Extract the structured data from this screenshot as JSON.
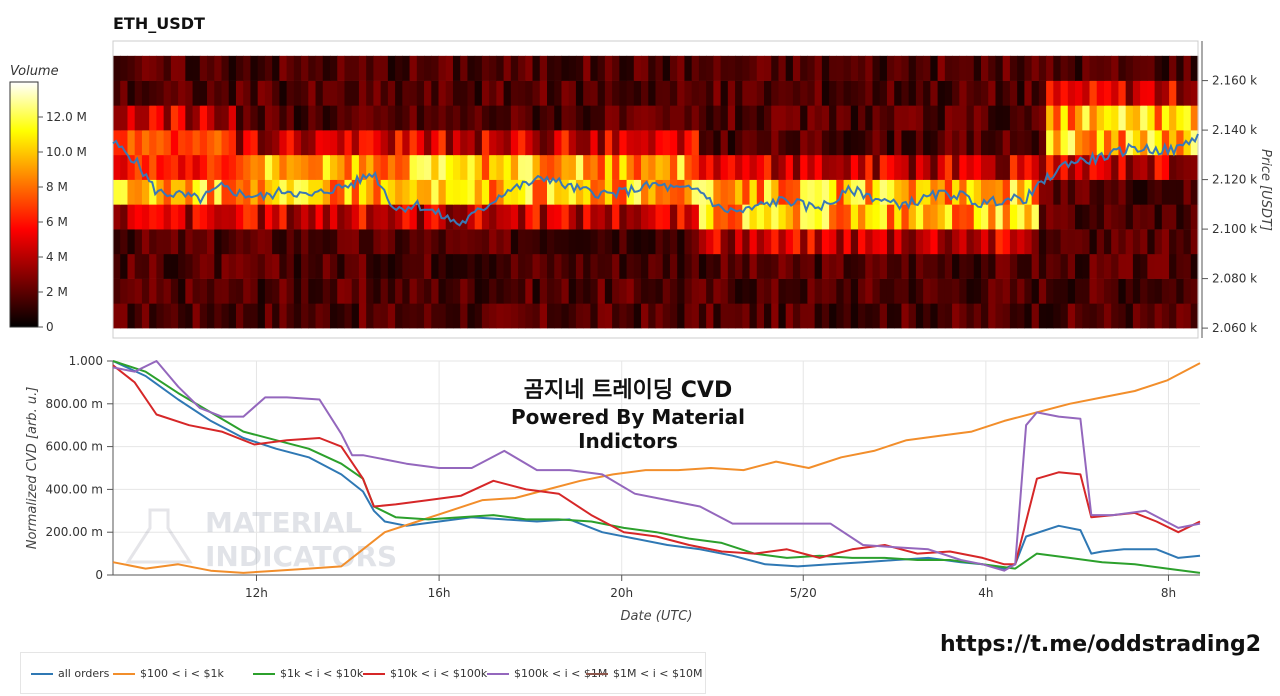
{
  "header": {
    "title": "ETH_USDT"
  },
  "overlay": {
    "line1": "곰지네 트레이딩 CVD",
    "line2": "Powered By Material Indictors"
  },
  "watermark": {
    "line1": "MATERIAL",
    "line2": "INDICATORS"
  },
  "link": "https://t.me/oddstrading2",
  "colors": {
    "all orders": "#2f78b4",
    "$100 < i < $1k": "#f28e2b",
    "$1k < i < $10k": "#2ca02c",
    "$10k < i < $100k": "#d62728",
    "$100k < i < $1M": "#9467bd",
    "$1M < i < $10M": "#8c564b",
    "price": "#3a78b5"
  },
  "chart_data": [
    {
      "type": "heatmap",
      "title": "ETH_USDT",
      "ylabel": "Price [USDT]",
      "ylim": [
        2056,
        2176
      ],
      "y_ticks": [
        "2.060 k",
        "2.080 k",
        "2.100 k",
        "2.120 k",
        "2.140 k",
        "2.160 k"
      ],
      "y_tick_values": [
        2060,
        2080,
        2100,
        2120,
        2140,
        2160
      ],
      "price_levels": [
        2065,
        2075,
        2085,
        2095,
        2105,
        2115,
        2125,
        2135,
        2145,
        2155,
        2165
      ],
      "colorbar": {
        "label": "Volume",
        "ticks": [
          "0",
          "2 M",
          "4 M",
          "6 M",
          "8 M",
          "10.0 M",
          "12.0 M"
        ],
        "tick_values": [
          0,
          2,
          4,
          6,
          8,
          10,
          12
        ],
        "max": 14
      },
      "high_volume_bands": [
        {
          "x_range": [
            0.0,
            0.54
          ],
          "levels": [
            2115,
            2125
          ],
          "peak_million": 12
        },
        {
          "x_range": [
            0.0,
            0.11
          ],
          "levels": [
            2125,
            2135
          ],
          "peak_million": 8
        },
        {
          "x_range": [
            0.54,
            0.85
          ],
          "levels": [
            2105,
            2115
          ],
          "peak_million": 12
        },
        {
          "x_range": [
            0.86,
            1.0
          ],
          "levels": [
            2135,
            2145
          ],
          "peak_million": 12
        }
      ],
      "price_series": {
        "name": "price",
        "x": [
          0.0,
          0.02,
          0.04,
          0.06,
          0.08,
          0.1,
          0.12,
          0.14,
          0.16,
          0.18,
          0.2,
          0.22,
          0.24,
          0.26,
          0.28,
          0.3,
          0.32,
          0.34,
          0.36,
          0.38,
          0.4,
          0.42,
          0.44,
          0.46,
          0.48,
          0.5,
          0.52,
          0.54,
          0.56,
          0.58,
          0.6,
          0.62,
          0.64,
          0.66,
          0.68,
          0.7,
          0.72,
          0.74,
          0.76,
          0.78,
          0.8,
          0.82,
          0.84,
          0.86,
          0.88,
          0.9,
          0.92,
          0.94,
          0.96,
          0.98,
          1.0
        ],
        "y": [
          2135,
          2128,
          2115,
          2114,
          2112,
          2117,
          2114,
          2113,
          2116,
          2113,
          2116,
          2118,
          2123,
          2108,
          2110,
          2106,
          2102,
          2108,
          2115,
          2118,
          2121,
          2117,
          2115,
          2114,
          2116,
          2118,
          2116,
          2116,
          2108,
          2107,
          2110,
          2112,
          2109,
          2110,
          2116,
          2113,
          2110,
          2111,
          2114,
          2114,
          2110,
          2112,
          2112,
          2120,
          2127,
          2128,
          2130,
          2133,
          2132,
          2132,
          2138
        ]
      }
    },
    {
      "type": "line",
      "title": "곰지네 트레이딩 CVD",
      "subtitle": "Powered By Material Indictors",
      "xlabel": "Date (UTC)",
      "ylabel": "Normalized CVD [arb. u.]",
      "ylim": [
        0,
        1
      ],
      "y_ticks": [
        "0",
        "200.00 m",
        "400.00 m",
        "600.00 m",
        "800.00 m",
        "1.000"
      ],
      "y_tick_values": [
        0,
        0.2,
        0.4,
        0.6,
        0.8,
        1.0
      ],
      "x_ticks": [
        "12h",
        "16h",
        "20h",
        "5/20",
        "4h",
        "8h"
      ],
      "x_tick_positions": [
        0.132,
        0.3,
        0.468,
        0.635,
        0.803,
        0.971
      ],
      "grid": true,
      "legend_position": "bottom",
      "series": [
        {
          "name": "all orders",
          "x": [
            0.0,
            0.03,
            0.06,
            0.09,
            0.12,
            0.15,
            0.18,
            0.21,
            0.23,
            0.24,
            0.25,
            0.27,
            0.3,
            0.33,
            0.36,
            0.39,
            0.42,
            0.45,
            0.48,
            0.51,
            0.54,
            0.57,
            0.6,
            0.63,
            0.66,
            0.69,
            0.72,
            0.75,
            0.78,
            0.8,
            0.82,
            0.83,
            0.84,
            0.87,
            0.89,
            0.9,
            0.91,
            0.93,
            0.96,
            0.98,
            1.0
          ],
          "y": [
            1.0,
            0.93,
            0.82,
            0.72,
            0.64,
            0.59,
            0.55,
            0.47,
            0.39,
            0.3,
            0.25,
            0.23,
            0.25,
            0.27,
            0.26,
            0.25,
            0.26,
            0.2,
            0.17,
            0.14,
            0.12,
            0.09,
            0.05,
            0.04,
            0.05,
            0.06,
            0.07,
            0.08,
            0.06,
            0.05,
            0.03,
            0.05,
            0.18,
            0.23,
            0.21,
            0.1,
            0.11,
            0.12,
            0.12,
            0.08,
            0.09
          ]
        },
        {
          "name": "$100 < i < $1k",
          "x": [
            0.0,
            0.03,
            0.06,
            0.09,
            0.12,
            0.15,
            0.18,
            0.21,
            0.23,
            0.25,
            0.28,
            0.31,
            0.34,
            0.37,
            0.4,
            0.43,
            0.46,
            0.49,
            0.52,
            0.55,
            0.58,
            0.61,
            0.64,
            0.67,
            0.7,
            0.73,
            0.76,
            0.79,
            0.82,
            0.85,
            0.88,
            0.91,
            0.94,
            0.97,
            1.0
          ],
          "y": [
            0.06,
            0.03,
            0.05,
            0.02,
            0.01,
            0.02,
            0.03,
            0.04,
            0.12,
            0.2,
            0.25,
            0.3,
            0.35,
            0.36,
            0.4,
            0.44,
            0.47,
            0.49,
            0.49,
            0.5,
            0.49,
            0.53,
            0.5,
            0.55,
            0.58,
            0.63,
            0.65,
            0.67,
            0.72,
            0.76,
            0.8,
            0.83,
            0.86,
            0.91,
            0.99
          ]
        },
        {
          "name": "$1k < i < $10k",
          "x": [
            0.0,
            0.03,
            0.06,
            0.09,
            0.12,
            0.15,
            0.18,
            0.21,
            0.23,
            0.24,
            0.26,
            0.29,
            0.32,
            0.35,
            0.38,
            0.41,
            0.44,
            0.47,
            0.5,
            0.53,
            0.56,
            0.59,
            0.62,
            0.65,
            0.68,
            0.71,
            0.74,
            0.77,
            0.8,
            0.83,
            0.85,
            0.88,
            0.91,
            0.94,
            0.97,
            1.0
          ],
          "y": [
            1.0,
            0.95,
            0.85,
            0.76,
            0.67,
            0.63,
            0.59,
            0.52,
            0.45,
            0.32,
            0.27,
            0.26,
            0.27,
            0.28,
            0.26,
            0.26,
            0.25,
            0.22,
            0.2,
            0.17,
            0.15,
            0.1,
            0.08,
            0.09,
            0.08,
            0.08,
            0.07,
            0.07,
            0.05,
            0.03,
            0.1,
            0.08,
            0.06,
            0.05,
            0.03,
            0.01
          ]
        },
        {
          "name": "$10k < i < $100k",
          "x": [
            0.0,
            0.02,
            0.04,
            0.07,
            0.1,
            0.13,
            0.16,
            0.19,
            0.21,
            0.23,
            0.24,
            0.26,
            0.29,
            0.32,
            0.35,
            0.38,
            0.41,
            0.44,
            0.47,
            0.5,
            0.53,
            0.56,
            0.59,
            0.62,
            0.65,
            0.68,
            0.71,
            0.74,
            0.77,
            0.8,
            0.82,
            0.83,
            0.85,
            0.87,
            0.89,
            0.9,
            0.92,
            0.94,
            0.96,
            0.98,
            1.0
          ],
          "y": [
            0.98,
            0.9,
            0.75,
            0.7,
            0.67,
            0.61,
            0.63,
            0.64,
            0.6,
            0.45,
            0.32,
            0.33,
            0.35,
            0.37,
            0.44,
            0.4,
            0.38,
            0.28,
            0.2,
            0.18,
            0.14,
            0.11,
            0.1,
            0.12,
            0.08,
            0.12,
            0.14,
            0.1,
            0.11,
            0.08,
            0.05,
            0.05,
            0.45,
            0.48,
            0.47,
            0.27,
            0.28,
            0.29,
            0.25,
            0.2,
            0.25
          ]
        },
        {
          "name": "$100k < i < $1M",
          "x": [
            0.0,
            0.02,
            0.04,
            0.06,
            0.08,
            0.1,
            0.12,
            0.14,
            0.16,
            0.19,
            0.21,
            0.22,
            0.23,
            0.24,
            0.27,
            0.3,
            0.33,
            0.36,
            0.39,
            0.42,
            0.45,
            0.48,
            0.51,
            0.54,
            0.57,
            0.6,
            0.63,
            0.66,
            0.69,
            0.72,
            0.75,
            0.78,
            0.8,
            0.82,
            0.83,
            0.84,
            0.85,
            0.87,
            0.89,
            0.9,
            0.92,
            0.95,
            0.98,
            1.0
          ],
          "y": [
            0.97,
            0.95,
            1.0,
            0.88,
            0.78,
            0.74,
            0.74,
            0.83,
            0.83,
            0.82,
            0.66,
            0.56,
            0.56,
            0.55,
            0.52,
            0.5,
            0.5,
            0.58,
            0.49,
            0.49,
            0.47,
            0.38,
            0.35,
            0.32,
            0.24,
            0.24,
            0.24,
            0.24,
            0.14,
            0.13,
            0.12,
            0.07,
            0.05,
            0.02,
            0.05,
            0.7,
            0.76,
            0.74,
            0.73,
            0.28,
            0.28,
            0.3,
            0.22,
            0.24
          ]
        },
        {
          "name": "$1M < i < $10M",
          "x": [],
          "y": []
        }
      ]
    }
  ]
}
